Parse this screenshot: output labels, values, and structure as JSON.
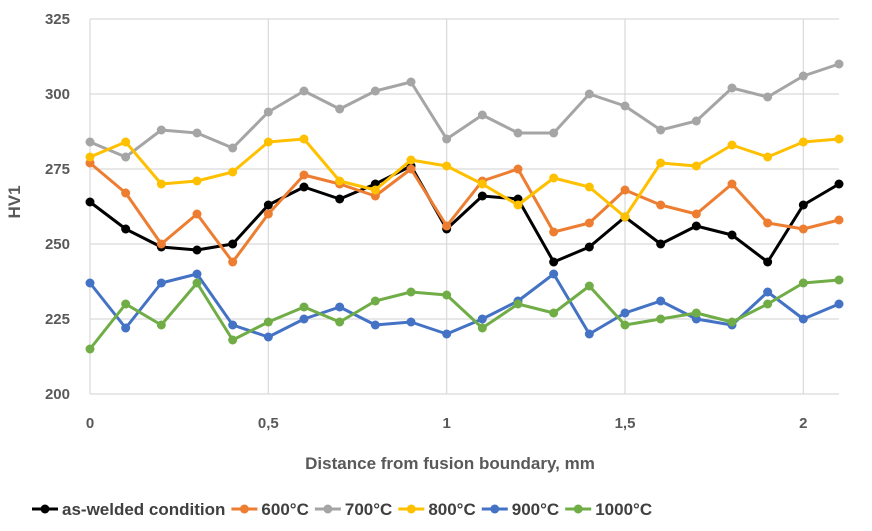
{
  "chart_data": {
    "type": "line",
    "title": "",
    "xlabel": "Distance from fusion boundary, mm",
    "ylabel": "HV1",
    "xlim": [
      0,
      2.1
    ],
    "ylim": [
      200,
      325
    ],
    "x_ticks": [
      0,
      0.5,
      1,
      1.5,
      2
    ],
    "x_tick_labels": [
      "0",
      "0,5",
      "1",
      "1,5",
      "2"
    ],
    "y_ticks": [
      200,
      225,
      250,
      275,
      300,
      325
    ],
    "y_tick_labels": [
      "200",
      "225",
      "250",
      "275",
      "300",
      "325"
    ],
    "grid": true,
    "legend_position": "bottom",
    "x": [
      0,
      0.1,
      0.2,
      0.3,
      0.4,
      0.5,
      0.6,
      0.7,
      0.8,
      0.9,
      1.0,
      1.1,
      1.2,
      1.3,
      1.4,
      1.5,
      1.6,
      1.7,
      1.8,
      1.9,
      2.0,
      2.1
    ],
    "series": [
      {
        "name": "as-welded condition",
        "color": "#000000",
        "values": [
          264,
          255,
          249,
          248,
          250,
          263,
          269,
          265,
          270,
          276,
          255,
          266,
          265,
          244,
          249,
          259,
          250,
          256,
          253,
          244,
          263,
          270
        ]
      },
      {
        "name": "600°C",
        "color": "#ED7D31",
        "values": [
          277,
          267,
          250,
          260,
          244,
          260,
          273,
          270,
          266,
          275,
          256,
          271,
          275,
          254,
          257,
          268,
          263,
          260,
          270,
          257,
          255,
          258
        ]
      },
      {
        "name": "700°C",
        "color": "#A5A5A5",
        "values": [
          284,
          279,
          288,
          287,
          282,
          294,
          301,
          295,
          301,
          304,
          285,
          293,
          287,
          287,
          300,
          296,
          288,
          291,
          302,
          299,
          306,
          310
        ]
      },
      {
        "name": "800°C",
        "color": "#FFC000",
        "values": [
          279,
          284,
          270,
          271,
          274,
          284,
          285,
          271,
          268,
          278,
          276,
          270,
          263,
          272,
          269,
          259,
          277,
          276,
          283,
          279,
          284,
          285
        ]
      },
      {
        "name": "900°C",
        "color": "#4472C4",
        "values": [
          237,
          222,
          237,
          240,
          223,
          219,
          225,
          229,
          223,
          224,
          220,
          225,
          231,
          240,
          220,
          227,
          231,
          225,
          223,
          234,
          225,
          230
        ]
      },
      {
        "name": "1000°C",
        "color": "#70AD47",
        "values": [
          215,
          230,
          223,
          237,
          218,
          224,
          229,
          224,
          231,
          234,
          233,
          222,
          230,
          227,
          236,
          223,
          225,
          227,
          224,
          230,
          237,
          238
        ]
      }
    ]
  }
}
